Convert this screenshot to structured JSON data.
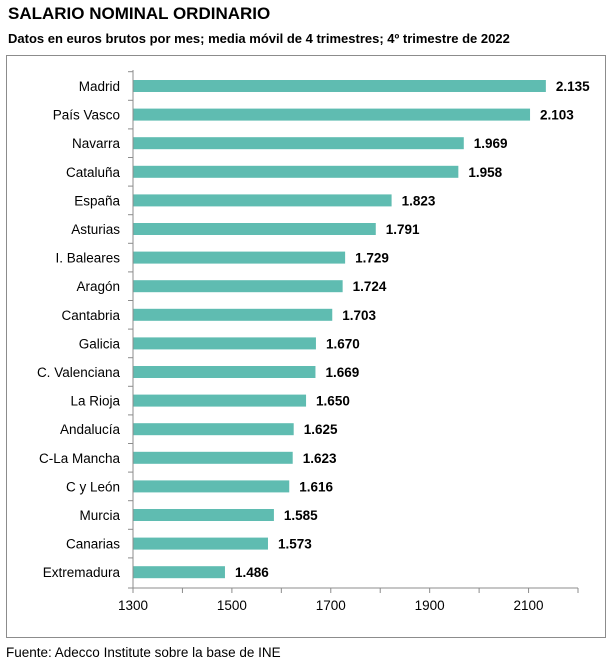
{
  "title": "SALARIO NOMINAL ORDINARIO",
  "subtitle": "Datos en euros brutos por mes; media móvil de 4 trimestres; 4º trimestre de 2022",
  "source": "Fuente: Adecco Institute sobre la base de INE",
  "colors": {
    "bar": "#5fbcb1",
    "axis": "#8c8c8c"
  },
  "chart_data": {
    "type": "bar",
    "orientation": "horizontal",
    "categories": [
      "Madrid",
      "País Vasco",
      "Navarra",
      "Cataluña",
      "España",
      "Asturias",
      "I. Baleares",
      "Aragón",
      "Cantabria",
      "Galicia",
      "C. Valenciana",
      "La Rioja",
      "Andalucía",
      "C-La Mancha",
      "C y León",
      "Murcia",
      "Canarias",
      "Extremadura"
    ],
    "values": [
      2135,
      2103,
      1969,
      1958,
      1823,
      1791,
      1729,
      1724,
      1703,
      1670,
      1669,
      1650,
      1625,
      1623,
      1616,
      1585,
      1573,
      1486
    ],
    "value_labels": [
      "2.135",
      "2.103",
      "1.969",
      "1.958",
      "1.823",
      "1.791",
      "1.729",
      "1.724",
      "1.703",
      "1.670",
      "1.669",
      "1.650",
      "1.625",
      "1.623",
      "1.616",
      "1.585",
      "1.573",
      "1.486"
    ],
    "xlim": [
      1300,
      2200
    ],
    "xticks": [
      1300,
      1500,
      1700,
      1900,
      2100
    ],
    "xtick_labels": [
      "1300",
      "1500",
      "1700",
      "1900",
      "2100"
    ],
    "grid": false,
    "legend": "none"
  }
}
